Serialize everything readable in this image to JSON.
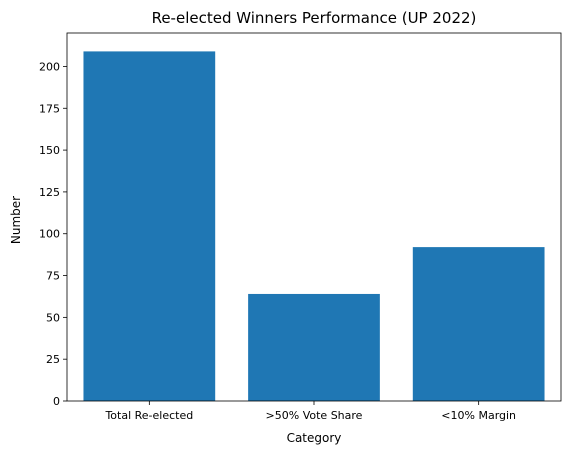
{
  "chart_data": {
    "type": "bar",
    "title": "Re-elected Winners Performance (UP 2022)",
    "xlabel": "Category",
    "ylabel": "Number",
    "categories": [
      "Total Re-elected",
      ">50% Vote Share",
      "<10% Margin"
    ],
    "values": [
      209,
      64,
      92
    ],
    "ylim": [
      0,
      220
    ],
    "yticks": [
      0,
      25,
      50,
      75,
      100,
      125,
      150,
      175,
      200
    ],
    "bar_color": "#1f77b4",
    "grid": false,
    "legend": "none"
  }
}
